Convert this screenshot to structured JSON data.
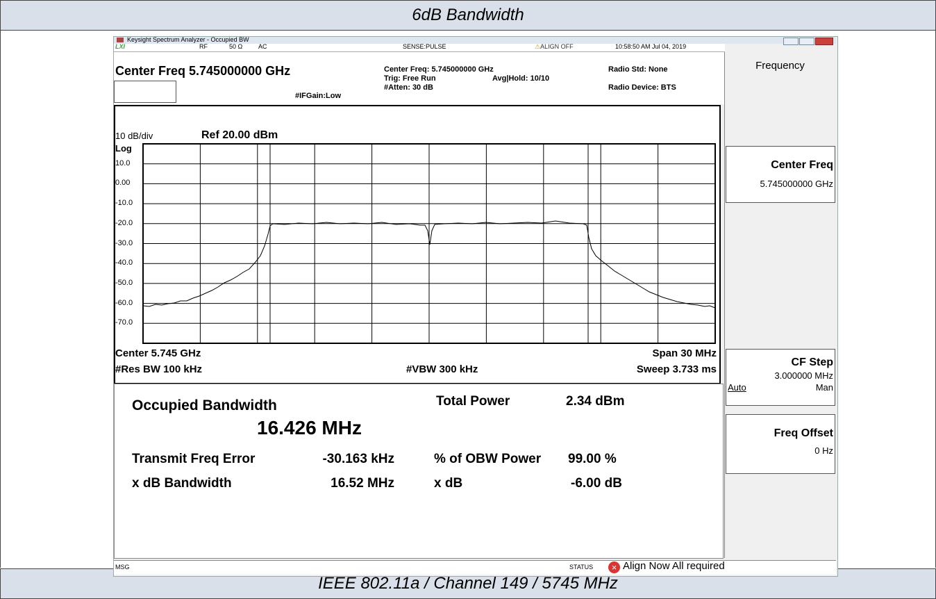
{
  "header": {
    "title": "6dB Bandwidth"
  },
  "footer": {
    "caption": "IEEE 802.11a / Channel 149 / 5745 MHz"
  },
  "window": {
    "title": "Keysight Spectrum Analyzer - Occupied BW"
  },
  "status_bar": {
    "logo": "LXI",
    "rf": "RF",
    "impedance": "50 Ω",
    "coupling": "AC",
    "sense": "SENSE:PULSE",
    "align": "ALIGN OFF",
    "timestamp": "10:58:50 AM Jul 04, 2019"
  },
  "settings": {
    "center_freq": "Center Freq 5.745000000 GHz",
    "if_gain": "#IFGain:Low",
    "center_freq_small": "Center Freq: 5.745000000 GHz",
    "trig": "Trig: Free Run",
    "avg_hold": "Avg|Hold: 10/10",
    "atten": "#Atten: 30 dB",
    "radio_std": "Radio Std: None",
    "radio_device": "Radio Device: BTS"
  },
  "graph": {
    "scale": "10 dB/div",
    "ref": "Ref 20.00 dBm",
    "log": "Log",
    "y_labels": [
      "10.0",
      "0.00",
      "-10.0",
      "-20.0",
      "-30.0",
      "-40.0",
      "-50.0",
      "-60.0",
      "-70.0"
    ],
    "center": "Center 5.745 GHz",
    "span": "Span 30 MHz",
    "res_bw": "#Res BW 100 kHz",
    "vbw": "#VBW 300 kHz",
    "sweep": "Sweep 3.733 ms"
  },
  "results": {
    "occupied_bandwidth_label": "Occupied Bandwidth",
    "occupied_bandwidth": "16.426 MHz",
    "total_power_label": "Total Power",
    "total_power": "2.34 dBm",
    "freq_error_label": "Transmit Freq Error",
    "freq_error": "-30.163 kHz",
    "obw_power_label": "% of OBW Power",
    "obw_power": "99.00 %",
    "xdb_bandwidth_label": "x dB Bandwidth",
    "xdb_bandwidth": "16.52 MHz",
    "xdb_label": "x dB",
    "xdb": "-6.00 dB"
  },
  "message_bar": {
    "msg": "MSG",
    "status": "STATUS",
    "message": "Align Now All required"
  },
  "softkeys": {
    "menu": "Frequency",
    "keys": [
      {
        "label": "Center Freq",
        "value": "5.745000000 GHz"
      },
      {
        "label": "CF Step",
        "value": "3.000000 MHz",
        "options": [
          "Auto",
          "Man"
        ]
      },
      {
        "label": "Freq Offset",
        "value": "0 Hz"
      }
    ]
  }
}
